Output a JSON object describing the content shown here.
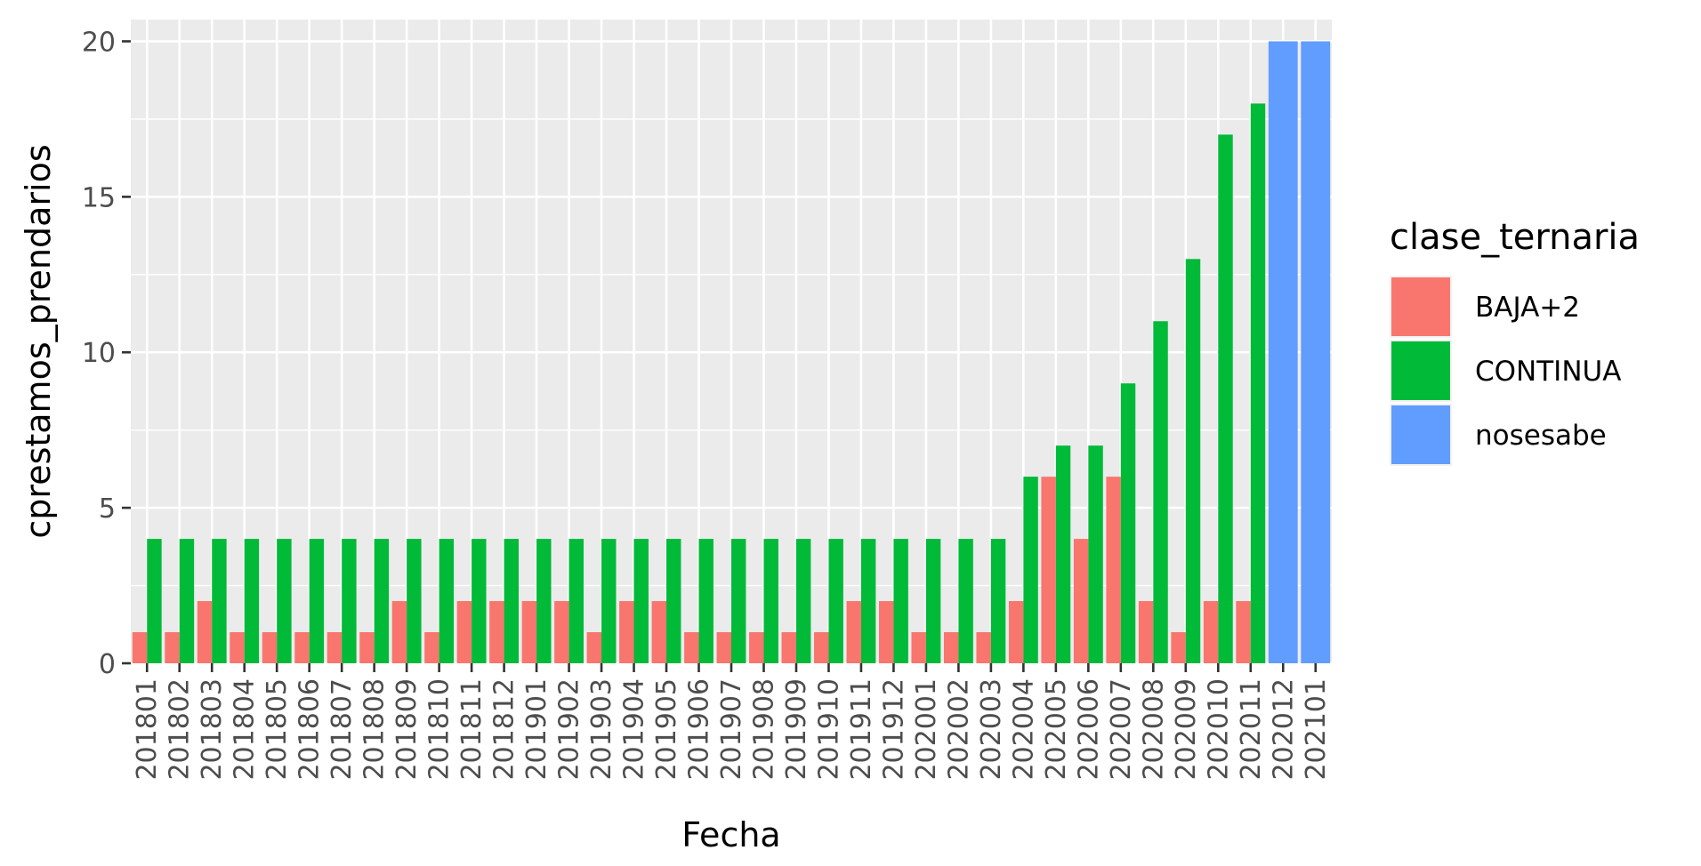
{
  "chart_data": {
    "type": "bar",
    "xlabel": "Fecha",
    "ylabel": "cprestamos_prendarios",
    "ylim": [
      0,
      20.7
    ],
    "yticks": [
      "0",
      "5",
      "10",
      "15",
      "20"
    ],
    "grid": true,
    "legend_position": "right",
    "legend_title": "clase_ternaria",
    "categories": [
      "201801",
      "201802",
      "201803",
      "201804",
      "201805",
      "201806",
      "201807",
      "201808",
      "201809",
      "201810",
      "201811",
      "201812",
      "201901",
      "201902",
      "201903",
      "201904",
      "201905",
      "201906",
      "201907",
      "201908",
      "201909",
      "201910",
      "201911",
      "201912",
      "202001",
      "202002",
      "202003",
      "202004",
      "202005",
      "202006",
      "202007",
      "202008",
      "202009",
      "202010",
      "202011",
      "202012",
      "202101"
    ],
    "series": [
      {
        "name": "BAJA+2",
        "color": "#F8766D",
        "values": [
          1,
          1,
          2,
          1,
          1,
          1,
          1,
          1,
          2,
          1,
          2,
          2,
          2,
          2,
          1,
          2,
          2,
          1,
          1,
          1,
          1,
          1,
          2,
          2,
          1,
          1,
          1,
          2,
          6,
          4,
          6,
          2,
          1,
          2,
          2,
          null,
          null
        ]
      },
      {
        "name": "CONTINUA",
        "color": "#00BA38",
        "values": [
          4,
          4,
          4,
          4,
          4,
          4,
          4,
          4,
          4,
          4,
          4,
          4,
          4,
          4,
          4,
          4,
          4,
          4,
          4,
          4,
          4,
          4,
          4,
          4,
          4,
          4,
          4,
          6,
          7,
          7,
          9,
          11,
          13,
          17,
          18,
          null,
          null
        ]
      },
      {
        "name": "nosesabe",
        "color": "#619CFF",
        "values": [
          null,
          null,
          null,
          null,
          null,
          null,
          null,
          null,
          null,
          null,
          null,
          null,
          null,
          null,
          null,
          null,
          null,
          null,
          null,
          null,
          null,
          null,
          null,
          null,
          null,
          null,
          null,
          null,
          null,
          null,
          null,
          null,
          null,
          null,
          null,
          20,
          20
        ]
      }
    ]
  }
}
